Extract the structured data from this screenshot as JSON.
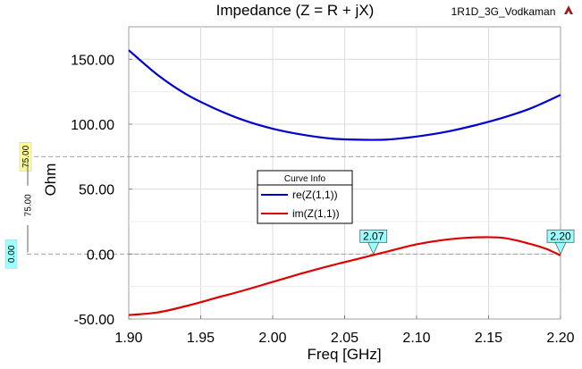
{
  "window": {
    "project_label": "1R1D_3G_Vodkaman"
  },
  "chart_data": {
    "type": "line",
    "title": "Impedance (Z = R + jX)",
    "xlabel": "Freq [GHz]",
    "ylabel": "Ohm",
    "xlim": [
      1.9,
      2.2
    ],
    "ylim": [
      -50,
      175
    ],
    "x_ticks": [
      1.9,
      1.95,
      2.0,
      2.05,
      2.1,
      2.15,
      2.2
    ],
    "y_ticks": [
      -50,
      0,
      50,
      100,
      150
    ],
    "x_tick_labels": [
      "1.90",
      "1.95",
      "2.00",
      "2.05",
      "2.10",
      "2.15",
      "2.20"
    ],
    "y_tick_labels": [
      "-50.00",
      "0.00",
      "50.00",
      "100.00",
      "150.00"
    ],
    "grid": true,
    "legend": {
      "title": "Curve Info",
      "placement": "center-left"
    },
    "series": [
      {
        "name": "re(Z(1,1))",
        "color": "#0000cc",
        "x": [
          1.9,
          1.92,
          1.94,
          1.96,
          1.98,
          2.0,
          2.02,
          2.04,
          2.06,
          2.08,
          2.1,
          2.12,
          2.14,
          2.16,
          2.18,
          2.2
        ],
        "y": [
          157,
          138,
          123,
          112,
          103,
          96.5,
          92,
          89,
          88,
          88.2,
          90.5,
          94,
          99,
          105,
          112.5,
          122.5
        ]
      },
      {
        "name": "im(Z(1,1))",
        "color": "#dd0000",
        "x": [
          1.9,
          1.92,
          1.94,
          1.96,
          1.98,
          2.0,
          2.02,
          2.04,
          2.06,
          2.08,
          2.1,
          2.12,
          2.14,
          2.16,
          2.18,
          2.19,
          2.2
        ],
        "y": [
          -47,
          -45,
          -40,
          -34,
          -28,
          -21.5,
          -15,
          -9,
          -3.5,
          2,
          7.5,
          11,
          12.8,
          12.5,
          7.5,
          4,
          -1
        ]
      }
    ],
    "markers": [
      {
        "label": "2.07",
        "x": 2.07,
        "y": 0
      },
      {
        "label": "2.20",
        "x": 2.2,
        "y": 0
      }
    ],
    "reference_lines": [
      {
        "label": "75.00",
        "axis_value_label": "75.00",
        "y": 75,
        "color": "#ffff99"
      },
      {
        "label": "75.00",
        "axis_value_label": "0.00",
        "y": 0,
        "color": "#99ffff"
      }
    ]
  }
}
